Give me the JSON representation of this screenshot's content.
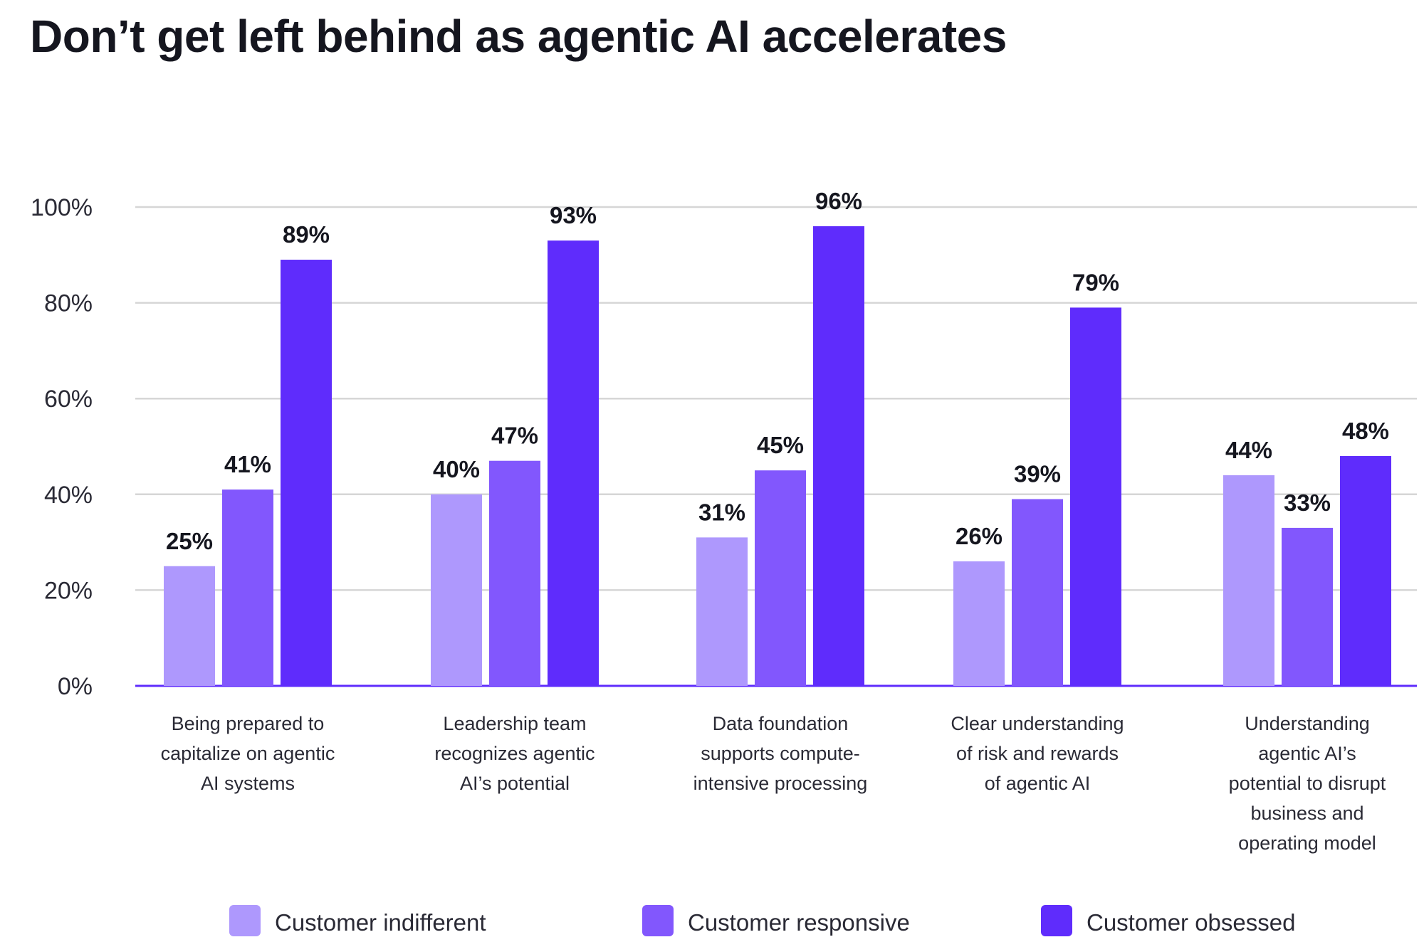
{
  "chart_data": {
    "type": "bar",
    "title": "Don’t get left behind as agentic AI accelerates",
    "xlabel": "",
    "ylabel": "",
    "ylim": [
      0,
      100
    ],
    "yticks": [
      "0%",
      "20%",
      "40%",
      "60%",
      "80%",
      "100%"
    ],
    "grid": true,
    "legend_position": "bottom",
    "categories": [
      [
        "Being prepared to",
        "capitalize on agentic",
        "AI systems"
      ],
      [
        "Leadership team",
        "recognizes agentic",
        "AI’s potential"
      ],
      [
        "Data foundation",
        "supports compute-",
        "intensive processing"
      ],
      [
        "Clear understanding",
        "of risk and rewards",
        "of agentic AI"
      ],
      [
        "Understanding",
        "agentic AI’s",
        "potential to disrupt",
        "business and",
        "operating model"
      ]
    ],
    "series": [
      {
        "name": "Customer indifferent",
        "color": "#ae98fd",
        "values": [
          25,
          40,
          31,
          26,
          44
        ],
        "labels": [
          "25%",
          "40%",
          "31%",
          "26%",
          "44%"
        ]
      },
      {
        "name": "Customer responsive",
        "color": "#8257fd",
        "values": [
          41,
          47,
          45,
          39,
          33
        ],
        "labels": [
          "41%",
          "47%",
          "45%",
          "39%",
          "33%"
        ]
      },
      {
        "name": "Customer obsessed",
        "color": "#5f2cfc",
        "values": [
          89,
          93,
          96,
          79,
          48
        ],
        "labels": [
          "89%",
          "93%",
          "96%",
          "79%",
          "48%"
        ]
      }
    ],
    "colors": {
      "grid": "#d6d6d6",
      "baseline": "#5f2cfc"
    }
  }
}
